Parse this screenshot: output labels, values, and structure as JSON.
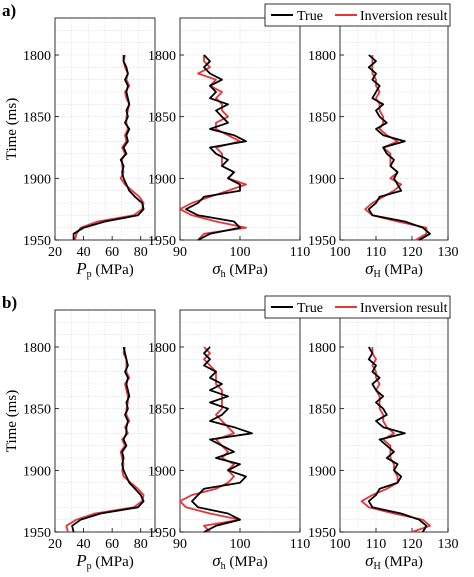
{
  "colors": {
    "true": "#000000",
    "inversion": "#e8333a",
    "grid": "#d9d9d9",
    "axis": "#000000"
  },
  "chart_data": [
    {
      "panel": "a)",
      "legend": {
        "placement": "top-right",
        "entries": [
          "True",
          "Inversion result"
        ]
      },
      "ylabel": "Time (ms)",
      "ylim": [
        1950,
        1770
      ],
      "yticks": [
        1800,
        1850,
        1900,
        1950
      ],
      "grid": true,
      "subplots": [
        {
          "type": "line",
          "xlabel": "P_p (MPa)",
          "xlabel_main": "P",
          "xlabel_sub": "p",
          "xlabel_unit": " (MPa)",
          "xlim": [
            20,
            90
          ],
          "xticks": [
            20,
            40,
            60,
            80
          ],
          "y": [
            1800,
            1805,
            1810,
            1815,
            1820,
            1825,
            1830,
            1835,
            1840,
            1845,
            1850,
            1855,
            1860,
            1865,
            1870,
            1875,
            1880,
            1885,
            1890,
            1895,
            1900,
            1905,
            1910,
            1915,
            1920,
            1925,
            1930,
            1935,
            1940,
            1945,
            1950
          ],
          "series": [
            {
              "name": "True",
              "values": [
                68,
                68,
                70,
                71,
                69,
                71,
                70,
                71,
                72,
                70,
                71,
                69,
                72,
                70,
                71,
                68,
                70,
                66,
                68,
                67,
                68,
                70,
                72,
                76,
                81,
                82,
                78,
                55,
                40,
                33,
                33
              ]
            },
            {
              "name": "Inversion result",
              "values": [
                69,
                68,
                69,
                71,
                70,
                72,
                69,
                70,
                72,
                71,
                70,
                70,
                71,
                69,
                70,
                67,
                69,
                67,
                67,
                68,
                66,
                69,
                74,
                79,
                82,
                81,
                75,
                50,
                38,
                35,
                34
              ]
            }
          ]
        },
        {
          "type": "line",
          "xlabel": "σ_h (MPa)",
          "xlabel_main": "σ",
          "xlabel_sub": "h",
          "xlabel_unit": " (MPa)",
          "xlim": [
            90,
            110
          ],
          "xticks": [
            90,
            100,
            110
          ],
          "y": [
            1800,
            1805,
            1810,
            1815,
            1820,
            1825,
            1830,
            1835,
            1840,
            1845,
            1850,
            1855,
            1860,
            1865,
            1870,
            1875,
            1880,
            1885,
            1890,
            1895,
            1900,
            1905,
            1910,
            1915,
            1920,
            1925,
            1930,
            1935,
            1940,
            1945,
            1950
          ],
          "series": [
            {
              "name": "True",
              "values": [
                94,
                95,
                94,
                95,
                97,
                95,
                96,
                95,
                98,
                96,
                97,
                98,
                95,
                99,
                101,
                95,
                96,
                98,
                97,
                99,
                98,
                100,
                100,
                94,
                93,
                91,
                93,
                99,
                100,
                95,
                93
              ]
            },
            {
              "name": "Inversion result",
              "values": [
                94,
                94,
                95,
                93,
                96,
                95,
                97,
                96,
                97,
                97,
                98,
                96,
                96,
                98,
                100,
                96,
                97,
                97,
                97,
                99,
                98,
                101,
                98,
                95,
                92,
                90,
                92,
                96,
                101,
                94,
                93
              ]
            }
          ]
        },
        {
          "type": "line",
          "xlabel": "σ_H (MPa)",
          "xlabel_main": "σ",
          "xlabel_sub": "H",
          "xlabel_unit": " (MPa)",
          "xlim": [
            100,
            130
          ],
          "xticks": [
            100,
            110,
            120,
            130
          ],
          "y": [
            1800,
            1805,
            1810,
            1815,
            1820,
            1825,
            1830,
            1835,
            1840,
            1845,
            1850,
            1855,
            1860,
            1865,
            1870,
            1875,
            1880,
            1885,
            1890,
            1895,
            1900,
            1905,
            1910,
            1915,
            1920,
            1925,
            1930,
            1935,
            1940,
            1945,
            1950
          ],
          "series": [
            {
              "name": "True",
              "values": [
                108,
                110,
                108,
                110,
                109,
                111,
                110,
                109,
                112,
                110,
                111,
                113,
                110,
                112,
                118,
                112,
                113,
                115,
                114,
                116,
                115,
                116,
                117,
                111,
                110,
                108,
                109,
                118,
                123,
                125,
                122
              ]
            },
            {
              "name": "Inversion result",
              "values": [
                109,
                109,
                109,
                109,
                110,
                110,
                111,
                110,
                111,
                111,
                112,
                112,
                111,
                113,
                116,
                112,
                114,
                114,
                114,
                116,
                114,
                117,
                115,
                112,
                109,
                107,
                109,
                116,
                124,
                124,
                121
              ]
            }
          ]
        }
      ]
    },
    {
      "panel": "b)",
      "legend": {
        "placement": "top-right",
        "entries": [
          "True",
          "Inversion result"
        ]
      },
      "ylabel": "Time (ms)",
      "ylim": [
        1950,
        1770
      ],
      "yticks": [
        1800,
        1850,
        1900,
        1950
      ],
      "grid": true,
      "subplots": [
        {
          "type": "line",
          "xlabel": "P_p (MPa)",
          "xlabel_main": "P",
          "xlabel_sub": "p",
          "xlabel_unit": " (MPa)",
          "xlim": [
            20,
            90
          ],
          "xticks": [
            20,
            40,
            60,
            80
          ],
          "y": [
            1800,
            1805,
            1810,
            1815,
            1820,
            1825,
            1830,
            1835,
            1840,
            1845,
            1850,
            1855,
            1860,
            1865,
            1870,
            1875,
            1880,
            1885,
            1890,
            1895,
            1900,
            1905,
            1910,
            1915,
            1920,
            1925,
            1930,
            1935,
            1940,
            1945,
            1950
          ],
          "series": [
            {
              "name": "True",
              "values": [
                68,
                69,
                70,
                71,
                69,
                71,
                70,
                71,
                72,
                70,
                71,
                69,
                71,
                70,
                70,
                68,
                70,
                67,
                68,
                67,
                68,
                70,
                72,
                76,
                80,
                82,
                78,
                52,
                38,
                32,
                33
              ]
            },
            {
              "name": "Inversion result",
              "values": [
                69,
                68,
                70,
                70,
                70,
                72,
                69,
                70,
                71,
                71,
                70,
                70,
                72,
                69,
                71,
                67,
                69,
                66,
                67,
                68,
                67,
                68,
                73,
                78,
                82,
                81,
                75,
                48,
                35,
                28,
                29
              ]
            }
          ]
        },
        {
          "type": "line",
          "xlabel": "σ_h (MPa)",
          "xlabel_main": "σ",
          "xlabel_sub": "h",
          "xlabel_unit": " (MPa)",
          "xlim": [
            90,
            110
          ],
          "xticks": [
            90,
            100,
            110
          ],
          "y": [
            1800,
            1805,
            1810,
            1815,
            1820,
            1825,
            1830,
            1835,
            1840,
            1845,
            1850,
            1855,
            1860,
            1865,
            1870,
            1875,
            1880,
            1885,
            1890,
            1895,
            1900,
            1905,
            1910,
            1915,
            1920,
            1925,
            1930,
            1935,
            1940,
            1945,
            1950
          ],
          "series": [
            {
              "name": "True",
              "values": [
                95,
                94,
                95,
                94,
                96,
                95,
                97,
                95,
                98,
                95,
                98,
                97,
                95,
                99,
                102,
                95,
                97,
                99,
                96,
                100,
                98,
                101,
                100,
                94,
                93,
                92,
                93,
                98,
                100,
                96,
                94
              ]
            },
            {
              "name": "Inversion result",
              "values": [
                94,
                95,
                94,
                95,
                96,
                96,
                96,
                97,
                97,
                97,
                97,
                96,
                97,
                98,
                99,
                96,
                97,
                98,
                97,
                99,
                98,
                99,
                98,
                96,
                92,
                90,
                91,
                95,
                100,
                94,
                95
              ]
            }
          ]
        },
        {
          "type": "line",
          "xlabel": "σ_H (MPa)",
          "xlabel_main": "σ",
          "xlabel_sub": "H",
          "xlabel_unit": " (MPa)",
          "xlim": [
            100,
            130
          ],
          "xticks": [
            100,
            110,
            120,
            130
          ],
          "y": [
            1800,
            1805,
            1810,
            1815,
            1820,
            1825,
            1830,
            1835,
            1840,
            1845,
            1850,
            1855,
            1860,
            1865,
            1870,
            1875,
            1880,
            1885,
            1890,
            1895,
            1900,
            1905,
            1910,
            1915,
            1920,
            1925,
            1930,
            1935,
            1940,
            1945,
            1950
          ],
          "series": [
            {
              "name": "True",
              "values": [
                108,
                109,
                108,
                110,
                109,
                111,
                109,
                110,
                112,
                110,
                112,
                113,
                110,
                112,
                118,
                111,
                113,
                115,
                113,
                116,
                115,
                117,
                116,
                111,
                110,
                108,
                109,
                117,
                122,
                124,
                123
              ]
            },
            {
              "name": "Inversion result",
              "values": [
                109,
                109,
                110,
                109,
                110,
                110,
                111,
                110,
                111,
                111,
                111,
                112,
                112,
                113,
                115,
                112,
                114,
                114,
                114,
                115,
                115,
                116,
                116,
                113,
                109,
                106,
                108,
                115,
                123,
                125,
                120
              ]
            }
          ]
        }
      ]
    }
  ]
}
